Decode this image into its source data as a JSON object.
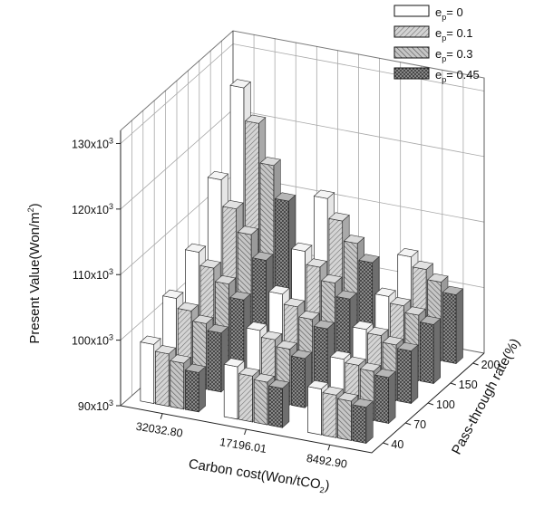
{
  "chart_data": {
    "type": "bar3d",
    "zlabel": "Present Value(Won/m",
    "zlabel_sub": "2",
    "zlabel_close": ")",
    "xlabel": "Carbon cost(Won/tCO",
    "xlabel_sub": "2",
    "xlabel_close": ")",
    "ylabel": "Pass-through rate(%)",
    "z_ticks": [
      {
        "value": 90000,
        "label": "90x10",
        "exp": "3"
      },
      {
        "value": 100000,
        "label": "100x10",
        "exp": "3"
      },
      {
        "value": 110000,
        "label": "110x10",
        "exp": "3"
      },
      {
        "value": 120000,
        "label": "120x10",
        "exp": "3"
      },
      {
        "value": 130000,
        "label": "130x10",
        "exp": "3"
      }
    ],
    "zlim": [
      90000,
      132000
    ],
    "carbon_cost": [
      "32032.80",
      "17196.01",
      "8492.90"
    ],
    "pass_through": [
      "40",
      "70",
      "100",
      "150",
      "200"
    ],
    "series": [
      {
        "name": "e",
        "sub": "p",
        "suffix": "= 0",
        "pattern": "white"
      },
      {
        "name": "e",
        "sub": "p",
        "suffix": "= 0.1",
        "pattern": "hatch1"
      },
      {
        "name": "e",
        "sub": "p",
        "suffix": "= 0.3",
        "pattern": "hatch2"
      },
      {
        "name": "e",
        "sub": "p",
        "suffix": "= 0.45",
        "pattern": "cross"
      }
    ],
    "values": [
      [
        [
          99000,
          98000,
          97000,
          96000
        ],
        [
          103000,
          101500,
          100000,
          99000
        ],
        [
          107000,
          105000,
          103000,
          101000
        ],
        [
          115000,
          111000,
          107500,
          104000
        ],
        [
          126000,
          121000,
          115000,
          110000
        ]
      ],
      [
        [
          98000,
          97000,
          96500,
          96000
        ],
        [
          100500,
          99500,
          98500,
          97500
        ],
        [
          103000,
          101500,
          100000,
          99000
        ],
        [
          106500,
          104500,
          102500,
          100500
        ],
        [
          111500,
          108500,
          105500,
          103000
        ]
      ],
      [
        [
          97000,
          96500,
          96000,
          95500
        ],
        [
          98500,
          98000,
          97500,
          97000
        ],
        [
          100000,
          99500,
          98500,
          98000
        ],
        [
          102000,
          101000,
          100000,
          99000
        ],
        [
          105000,
          103500,
          102000,
          100500
        ]
      ]
    ]
  }
}
